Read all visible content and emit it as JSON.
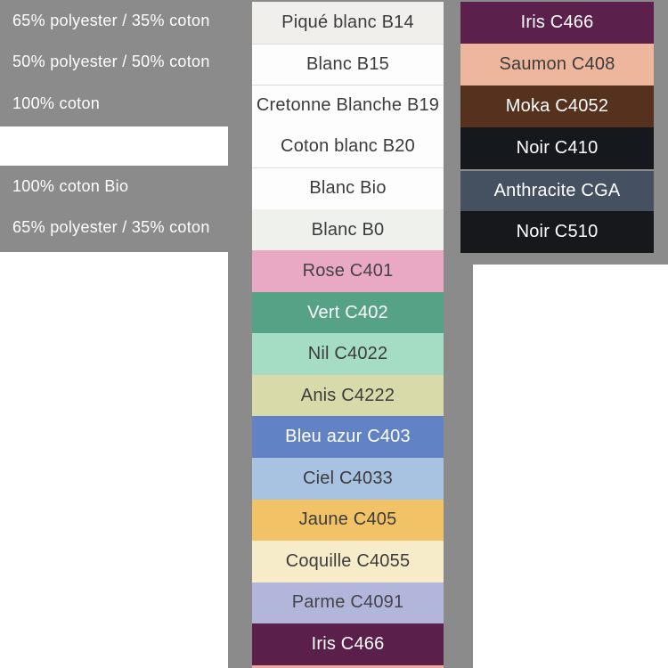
{
  "page": {
    "bg": "#ffffff",
    "panel_gray": "#8b8b8b"
  },
  "left_panel": {
    "text_color": "#ffffff",
    "rows": [
      {
        "label": "65% polyester / 35% coton"
      },
      {
        "label": "50% polyester / 50% coton"
      },
      {
        "label": "100% coton"
      },
      {
        "label": ""
      },
      {
        "label": "100% coton Bio"
      },
      {
        "label": "65% polyester / 35% coton"
      }
    ]
  },
  "middle_column": {
    "rows": [
      {
        "label": "Piqué blanc B14",
        "color": "#f0efec",
        "text_color": "#3c3c3c"
      },
      {
        "label": "Blanc B15",
        "color": "#fdfdfd",
        "text_color": "#3c3c3c",
        "divider": "light"
      },
      {
        "label": "Cretonne Blanche B19",
        "color": "#fdfdfd",
        "text_color": "#3c3c3c",
        "divider": "light"
      },
      {
        "label": "Coton blanc B20",
        "color": "#fdfdfd",
        "text_color": "#3c3c3c"
      },
      {
        "label": "Blanc Bio",
        "color": "#fdfdfd",
        "text_color": "#3c3c3c",
        "divider": "light"
      },
      {
        "label": "Blanc B0",
        "color": "#eff1ec",
        "text_color": "#3c3c3c"
      },
      {
        "label": "Rose C401",
        "color": "#e9a8c4",
        "text_color": "#434343"
      },
      {
        "label": "Vert C402",
        "color": "#56a286",
        "text_color": "#ffffff"
      },
      {
        "label": "Nil C4022",
        "color": "#a4dcc4",
        "text_color": "#3c3c3c"
      },
      {
        "label": "Anis C4222",
        "color": "#d8dba9",
        "text_color": "#3c3c3c"
      },
      {
        "label": "Bleu azur C403",
        "color": "#6183c6",
        "text_color": "#ffffff"
      },
      {
        "label": "Ciel C4033",
        "color": "#a8c2e2",
        "text_color": "#3c3c3c"
      },
      {
        "label": "Jaune C405",
        "color": "#f2c366",
        "text_color": "#3c3c3c",
        "texture": "twill"
      },
      {
        "label": "Coquille C4055",
        "color": "#f6ecca",
        "text_color": "#3c3c3c"
      },
      {
        "label": "Parme C4091",
        "color": "#b2b6da",
        "text_color": "#44444a"
      },
      {
        "label": "Iris C466",
        "color": "#5b1f4b",
        "text_color": "#ffffff"
      }
    ],
    "peek_color": "#ecab9b"
  },
  "right_column": {
    "rows": [
      {
        "label": "Iris C466",
        "color": "#5c204c",
        "text_color": "#ffffff"
      },
      {
        "label": "Saumon C408",
        "color": "#efb69e",
        "text_color": "#3c3c3c"
      },
      {
        "label": "Moka C4052",
        "color": "#56311d",
        "text_color": "#ffffff"
      },
      {
        "label": "Noir C410",
        "color": "#15181d",
        "text_color": "#ffffff"
      },
      {
        "label": "Anthracite CGA",
        "color": "#455061",
        "text_color": "#ffffff",
        "divider": "gray"
      },
      {
        "label": "Noir C510",
        "color": "#17181c",
        "text_color": "#ffffff"
      }
    ]
  }
}
